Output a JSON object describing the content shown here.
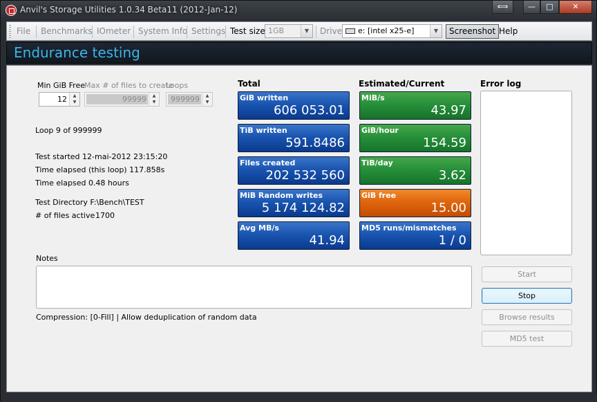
{
  "window": {
    "title": "Anvil's Storage Utilities 1.0.34 Beta11 (2012-Jan-12)",
    "caption_buttons": {
      "restore_down": "⟺",
      "minimize": "—",
      "maximize": "□",
      "close": "✕"
    }
  },
  "menubar": {
    "file": "File",
    "benchmarks": "Benchmarks",
    "iometer": "IOmeter",
    "system_info": "System Info",
    "settings": "Settings",
    "test_size_label": "Test size",
    "test_size_value": "1GB",
    "drive_label": "Drive",
    "drive_value": "e: [intel x25-e]",
    "screenshot": "Screenshot",
    "help": "Help"
  },
  "header": {
    "title": "Endurance testing"
  },
  "settings": {
    "min_gib_free_label": "Min GiB Free",
    "min_gib_free_value": "12",
    "max_files_label": "Max # of files to create",
    "max_files_value": "99999",
    "loops_label": "Loops",
    "loops_value": "999999"
  },
  "status": {
    "loop": "Loop 9 of 999999",
    "test_started": "Test started 12-mai-2012 23:15:20",
    "time_elapsed_loop": "Time elapsed (this loop) 117.858s",
    "time_elapsed": "Time elapsed 0.48 hours",
    "test_directory": "Test Directory F:\\Bench\\TEST",
    "files_active_label": "# of files active",
    "files_active_value": "1700"
  },
  "total": {
    "heading": "Total",
    "tiles": [
      {
        "label": "GiB written",
        "value": "606 053.01"
      },
      {
        "label": "TiB written",
        "value": "591.8486"
      },
      {
        "label": "Files created",
        "value": "202 532 560"
      },
      {
        "label": "MiB Random writes",
        "value": "5 174 124.82"
      },
      {
        "label": "Avg MB/s",
        "value": "41.94"
      }
    ]
  },
  "estimated": {
    "heading": "Estimated/Current",
    "tiles": [
      {
        "label": "MiB/s",
        "value": "43.97"
      },
      {
        "label": "GiB/hour",
        "value": "154.59"
      },
      {
        "label": "TiB/day",
        "value": "3.62"
      },
      {
        "label": "GiB free",
        "value": "15.00"
      },
      {
        "label": "MD5 runs/mismatches",
        "value": "1 / 0"
      }
    ]
  },
  "error_log": {
    "heading": "Error log"
  },
  "notes": {
    "label": "Notes",
    "value": ""
  },
  "compression": "Compression: [0-Fill] | Allow deduplication of random data",
  "buttons": {
    "start": "Start",
    "stop": "Stop",
    "browse_results": "Browse results",
    "md5_test": "MD5 test"
  },
  "colors": {
    "header_title": "#3cb4e6",
    "tile_blue": "#1a55b0",
    "tile_green": "#27903a",
    "tile_orange": "#e0660e"
  }
}
